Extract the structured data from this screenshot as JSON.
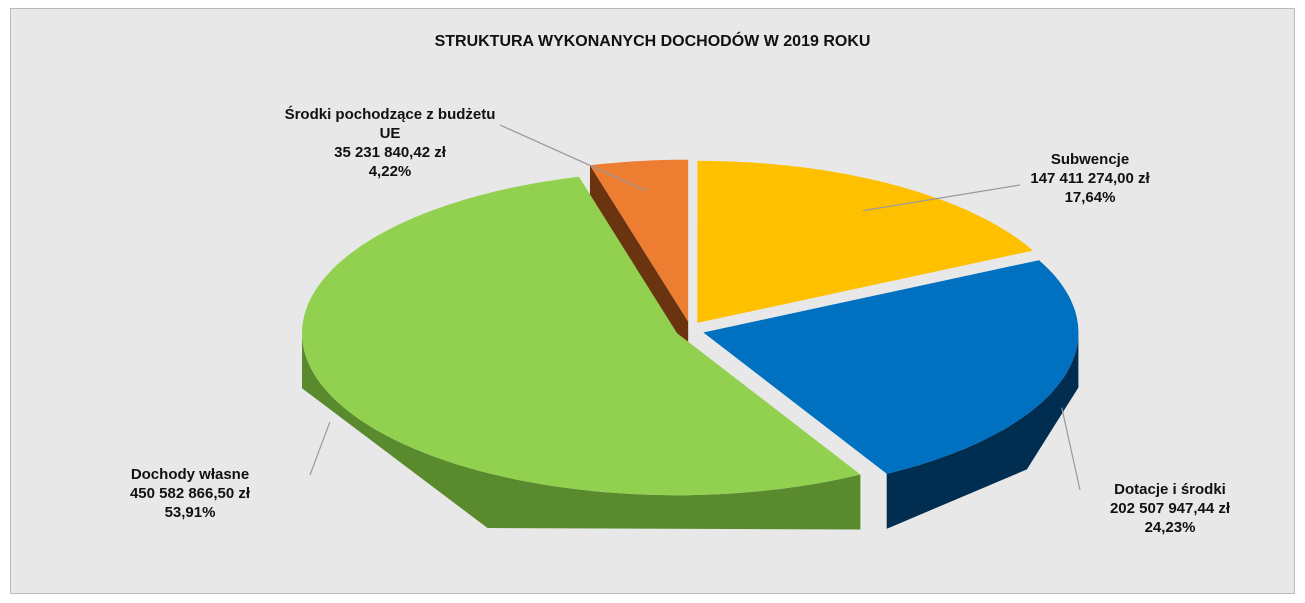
{
  "chart_data": {
    "type": "pie",
    "title": "STRUKTURA WYKONANYCH DOCHODÓW W 2019 ROKU",
    "categories": [
      "Subwencje",
      "Dotacje i środki",
      "Dochody własne",
      "Środki pochodzące z budżetu UE"
    ],
    "values": [
      147411274.0,
      202507947.44,
      450582866.5,
      35231840.42
    ],
    "value_labels": [
      "147 411 274,00 zł",
      "202 507 947,44 zł",
      "450 582 866,50 zł",
      "35 231 840,42 zł"
    ],
    "percents": [
      17.64,
      24.23,
      53.91,
      4.22
    ],
    "percent_labels": [
      "17,64%",
      "24,23%",
      "53,91%",
      "4,22%"
    ],
    "colors": [
      "#FFC000",
      "#0070C0",
      "#92D050",
      "#ED7D31"
    ],
    "side_colors": [
      "#8a6a00",
      "#002d50",
      "#5a8a2e",
      "#6b3410"
    ]
  }
}
